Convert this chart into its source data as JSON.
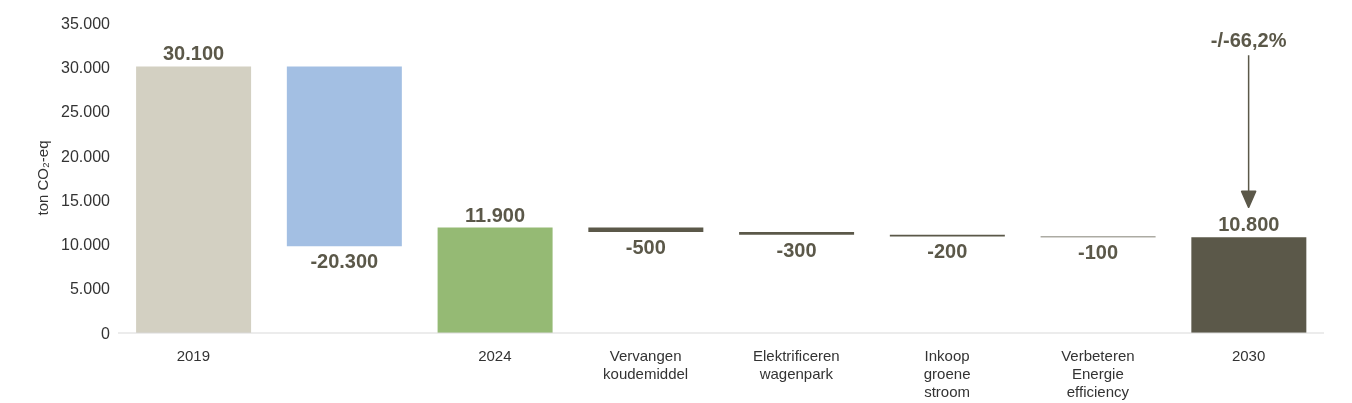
{
  "chart_data": {
    "type": "bar",
    "ylabel": "ton CO₂-eq",
    "categories": [
      "2019",
      null,
      "2024",
      "Vervangen koudemiddel",
      "Elektrificeren wagenpark",
      "Inkoop groene stroom",
      "Verbeteren Energie efficiency",
      "2030"
    ],
    "values": [
      30100,
      -20300,
      11900,
      -500,
      -300,
      -200,
      -100,
      10800
    ],
    "base": [
      0,
      30100,
      0,
      11900,
      11400,
      11100,
      10900,
      0
    ],
    "colors": [
      "#d3d0c2",
      "#a3bfe3",
      "#95ba74",
      "#5b5849",
      "#5b5849",
      "#5b5849",
      "#5b5849",
      "#5b5849"
    ],
    "value_labels": [
      "30.100",
      "-20.300",
      "11.900",
      "-500",
      "-300",
      "-200",
      "-100",
      "10.800"
    ],
    "ylim": [
      0,
      35000
    ],
    "yticks": [
      {
        "value": 0,
        "label": "0"
      },
      {
        "value": 5000,
        "label": "5.000"
      },
      {
        "value": 10000,
        "label": "10.000"
      },
      {
        "value": 15000,
        "label": "15.000"
      },
      {
        "value": 20000,
        "label": "20.000"
      },
      {
        "value": 25000,
        "label": "25.000"
      },
      {
        "value": 30000,
        "label": "30.000"
      },
      {
        "value": 35000,
        "label": "35.000"
      }
    ],
    "annotations": [
      "-/-66,2%"
    ],
    "grid": false,
    "legend": false
  }
}
